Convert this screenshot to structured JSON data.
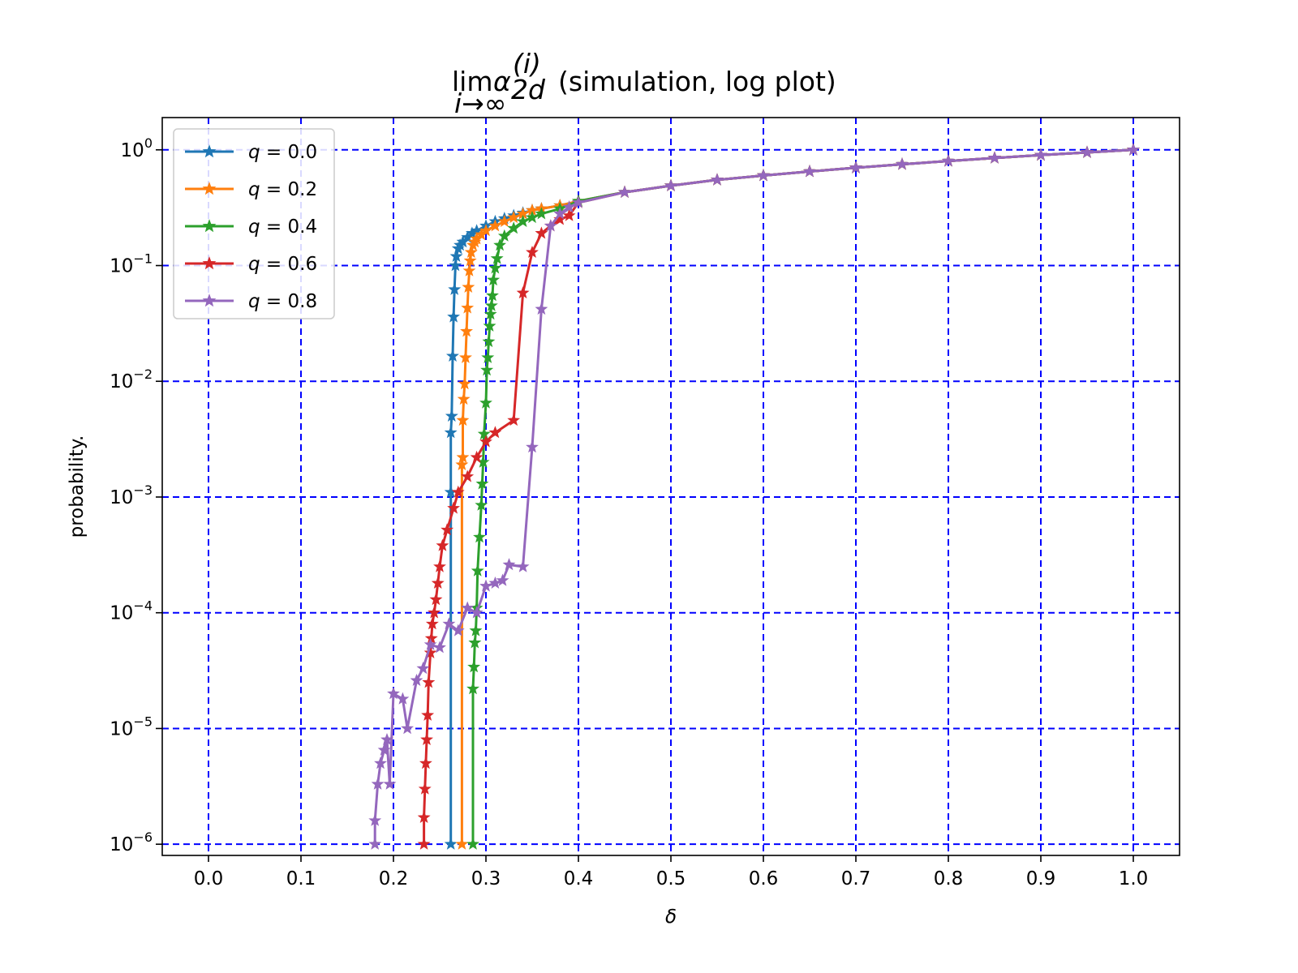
{
  "chart_data": {
    "type": "line",
    "title": "lim α_2d^(i) (simulation, log plot)",
    "title_parts": {
      "lim": "lim",
      "alpha": "α",
      "superscript": "(i)",
      "subscript": "2d",
      "limit_under": "i→∞",
      "rest": "(simulation, log plot)"
    },
    "xlabel": "δ",
    "ylabel": "probability.",
    "xlim": [
      -0.05,
      1.05
    ],
    "ylim": [
      8e-07,
      1.9
    ],
    "yscale": "log",
    "grid": true,
    "grid_color": "#0000ff",
    "legend_position": "upper left",
    "x_ticks": [
      0.0,
      0.1,
      0.2,
      0.3,
      0.4,
      0.5,
      0.6,
      0.7,
      0.8,
      0.9,
      1.0
    ],
    "x_tick_labels": [
      "0.0",
      "0.1",
      "0.2",
      "0.3",
      "0.4",
      "0.5",
      "0.6",
      "0.7",
      "0.8",
      "0.9",
      "1.0"
    ],
    "y_ticks": [
      {
        "value": 1,
        "base": "10",
        "exp": "0"
      },
      {
        "value": 0.1,
        "base": "10",
        "exp": "−1"
      },
      {
        "value": 0.01,
        "base": "10",
        "exp": "−2"
      },
      {
        "value": 0.001,
        "base": "10",
        "exp": "−3"
      },
      {
        "value": 0.0001,
        "base": "10",
        "exp": "−4"
      },
      {
        "value": 1e-05,
        "base": "10",
        "exp": "−5"
      },
      {
        "value": 1e-06,
        "base": "10",
        "exp": "−6"
      }
    ],
    "series": [
      {
        "name": "q = 0.0",
        "legend_var": "q",
        "legend_value": "= 0.0",
        "color": "#1f77b4",
        "x": [
          0.262,
          0.262,
          0.262,
          0.263,
          0.264,
          0.265,
          0.266,
          0.267,
          0.268,
          0.27,
          0.272,
          0.275,
          0.28,
          0.285,
          0.29,
          0.3,
          0.31,
          0.32,
          0.33,
          0.34,
          0.35,
          0.36,
          0.38,
          0.4,
          0.45,
          0.5,
          0.55,
          0.6,
          0.65,
          0.7,
          0.75,
          0.8,
          0.85,
          0.9,
          0.95,
          1.0
        ],
        "y": [
          1e-06,
          0.0011,
          0.0036,
          0.005,
          0.0165,
          0.036,
          0.062,
          0.1,
          0.12,
          0.14,
          0.15,
          0.16,
          0.175,
          0.19,
          0.2,
          0.22,
          0.24,
          0.255,
          0.27,
          0.285,
          0.3,
          0.31,
          0.33,
          0.36,
          0.43,
          0.49,
          0.55,
          0.6,
          0.65,
          0.7,
          0.75,
          0.8,
          0.85,
          0.9,
          0.95,
          1.0
        ]
      },
      {
        "name": "q = 0.2",
        "legend_var": "q",
        "legend_value": "= 0.2",
        "color": "#ff7f0e",
        "x": [
          0.274,
          0.274,
          0.275,
          0.275,
          0.276,
          0.277,
          0.278,
          0.279,
          0.28,
          0.281,
          0.282,
          0.283,
          0.284,
          0.286,
          0.288,
          0.29,
          0.295,
          0.3,
          0.31,
          0.32,
          0.33,
          0.34,
          0.35,
          0.36,
          0.38,
          0.4,
          0.45,
          0.5,
          0.55,
          0.6,
          0.65,
          0.7,
          0.75,
          0.8,
          0.85,
          0.9,
          0.95,
          1.0
        ],
        "y": [
          1e-06,
          0.0019,
          0.0022,
          0.0046,
          0.007,
          0.0095,
          0.016,
          0.027,
          0.043,
          0.065,
          0.09,
          0.11,
          0.13,
          0.15,
          0.16,
          0.17,
          0.185,
          0.2,
          0.22,
          0.24,
          0.26,
          0.28,
          0.3,
          0.31,
          0.33,
          0.36,
          0.43,
          0.49,
          0.55,
          0.6,
          0.65,
          0.7,
          0.75,
          0.8,
          0.85,
          0.9,
          0.95,
          1.0
        ]
      },
      {
        "name": "q = 0.4",
        "legend_var": "q",
        "legend_value": "= 0.4",
        "color": "#2ca02c",
        "x": [
          0.286,
          0.286,
          0.287,
          0.288,
          0.289,
          0.29,
          0.291,
          0.293,
          0.295,
          0.296,
          0.297,
          0.298,
          0.3,
          0.301,
          0.302,
          0.303,
          0.304,
          0.305,
          0.306,
          0.307,
          0.308,
          0.31,
          0.312,
          0.315,
          0.32,
          0.33,
          0.34,
          0.35,
          0.36,
          0.38,
          0.4,
          0.45,
          0.5,
          0.55,
          0.6,
          0.65,
          0.7,
          0.75,
          0.8,
          0.85,
          0.9,
          0.95,
          1.0
        ],
        "y": [
          1e-06,
          2.2e-05,
          3.4e-05,
          5.5e-05,
          7e-05,
          0.00011,
          0.00023,
          0.00045,
          0.00085,
          0.0013,
          0.002,
          0.0035,
          0.0065,
          0.0125,
          0.016,
          0.022,
          0.03,
          0.038,
          0.045,
          0.055,
          0.075,
          0.095,
          0.115,
          0.15,
          0.18,
          0.21,
          0.24,
          0.26,
          0.28,
          0.31,
          0.36,
          0.43,
          0.49,
          0.55,
          0.6,
          0.65,
          0.7,
          0.75,
          0.8,
          0.85,
          0.9,
          0.95,
          1.0
        ]
      },
      {
        "name": "q = 0.6",
        "legend_var": "q",
        "legend_value": "= 0.6",
        "color": "#d62728",
        "x": [
          0.233,
          0.233,
          0.234,
          0.235,
          0.236,
          0.237,
          0.238,
          0.24,
          0.241,
          0.242,
          0.244,
          0.246,
          0.248,
          0.25,
          0.253,
          0.258,
          0.265,
          0.27,
          0.28,
          0.29,
          0.3,
          0.31,
          0.33,
          0.34,
          0.35,
          0.36,
          0.37,
          0.38,
          0.39,
          0.4,
          0.45,
          0.5,
          0.55,
          0.6,
          0.65,
          0.7,
          0.75,
          0.8,
          0.85,
          0.9,
          0.95,
          1.0
        ],
        "y": [
          1e-06,
          1.7e-06,
          3e-06,
          5e-06,
          8e-06,
          1.3e-05,
          2.5e-05,
          4.5e-05,
          6e-05,
          8e-05,
          0.0001,
          0.00013,
          0.00018,
          0.00025,
          0.00038,
          0.00052,
          0.0008,
          0.0011,
          0.0015,
          0.0022,
          0.003,
          0.0036,
          0.0046,
          0.058,
          0.13,
          0.19,
          0.22,
          0.25,
          0.27,
          0.35,
          0.43,
          0.49,
          0.55,
          0.6,
          0.65,
          0.7,
          0.75,
          0.8,
          0.85,
          0.9,
          0.95,
          1.0
        ],
        "x_fixed": true
      },
      {
        "name": "q = 0.8",
        "legend_var": "q",
        "legend_value": "= 0.8",
        "color": "#9467bd",
        "x": [
          0.18,
          0.18,
          0.183,
          0.186,
          0.19,
          0.193,
          0.196,
          0.2,
          0.21,
          0.215,
          0.225,
          0.232,
          0.24,
          0.25,
          0.26,
          0.27,
          0.28,
          0.29,
          0.3,
          0.31,
          0.318,
          0.325,
          0.34,
          0.35,
          0.36,
          0.37,
          0.38,
          0.39,
          0.4,
          0.45,
          0.5,
          0.55,
          0.6,
          0.65,
          0.7,
          0.75,
          0.8,
          0.85,
          0.9,
          0.95,
          1.0
        ],
        "y": [
          1e-06,
          1.6e-06,
          3.3e-06,
          5e-06,
          6.5e-06,
          8e-06,
          3.3e-06,
          2e-05,
          1.8e-05,
          1e-05,
          2.6e-05,
          3.3e-05,
          5.3e-05,
          5e-05,
          8e-05,
          7e-05,
          0.00011,
          0.0001,
          0.00017,
          0.00018,
          0.00019,
          0.00026,
          0.00025,
          0.0027,
          0.042,
          0.22,
          0.28,
          0.32,
          0.35,
          0.43,
          0.49,
          0.55,
          0.6,
          0.65,
          0.7,
          0.75,
          0.8,
          0.85,
          0.9,
          0.95,
          1.0
        ]
      }
    ]
  }
}
